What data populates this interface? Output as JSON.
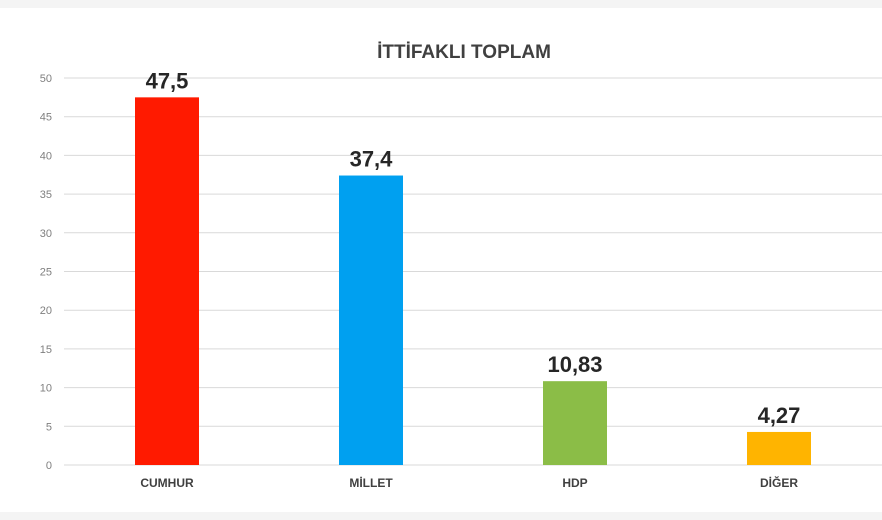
{
  "chart_data": {
    "type": "bar",
    "title": "İTTİFAKLI TOPLAM",
    "xlabel": "",
    "ylabel": "",
    "categories": [
      "CUMHUR",
      "MİLLET",
      "HDP",
      "DİĞER"
    ],
    "values": [
      47.5,
      37.4,
      10.83,
      4.27
    ],
    "value_labels": [
      "47,5",
      "37,4",
      "10,83",
      "4,27"
    ],
    "colors": [
      "#ff1a00",
      "#00a0f0",
      "#8bbd47",
      "#ffb400"
    ],
    "ylim": [
      0,
      50
    ],
    "yticks": [
      0,
      5,
      10,
      15,
      20,
      25,
      30,
      35,
      40,
      45,
      50
    ],
    "grid": true,
    "legend": "none"
  }
}
